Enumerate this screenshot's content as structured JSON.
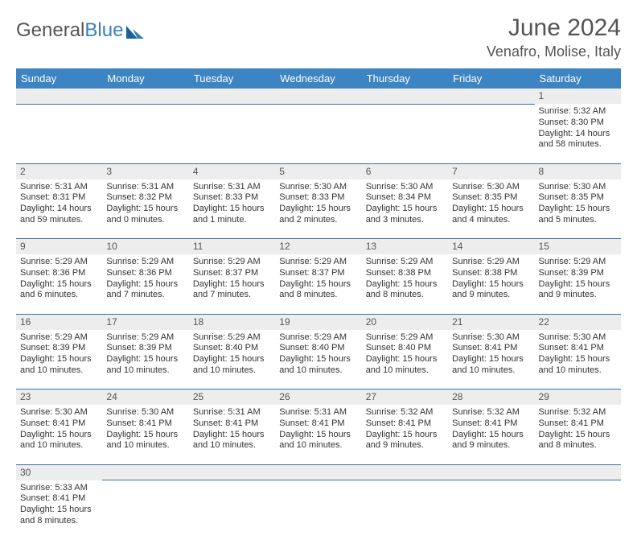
{
  "brand": {
    "part1": "General",
    "part2": "Blue"
  },
  "title": "June 2024",
  "location": "Venafro, Molise, Italy",
  "colors": {
    "header_bg": "#3d84c3",
    "header_text": "#ffffff",
    "daynum_bg": "#ededed",
    "row_divider": "#3d6fa3",
    "logo_accent": "#3b7fb8"
  },
  "weekdays": [
    "Sunday",
    "Monday",
    "Tuesday",
    "Wednesday",
    "Thursday",
    "Friday",
    "Saturday"
  ],
  "weeks": [
    [
      null,
      null,
      null,
      null,
      null,
      null,
      {
        "n": "1",
        "sr": "Sunrise: 5:32 AM",
        "ss": "Sunset: 8:30 PM",
        "d1": "Daylight: 14 hours",
        "d2": "and 58 minutes."
      }
    ],
    [
      {
        "n": "2",
        "sr": "Sunrise: 5:31 AM",
        "ss": "Sunset: 8:31 PM",
        "d1": "Daylight: 14 hours",
        "d2": "and 59 minutes."
      },
      {
        "n": "3",
        "sr": "Sunrise: 5:31 AM",
        "ss": "Sunset: 8:32 PM",
        "d1": "Daylight: 15 hours",
        "d2": "and 0 minutes."
      },
      {
        "n": "4",
        "sr": "Sunrise: 5:31 AM",
        "ss": "Sunset: 8:33 PM",
        "d1": "Daylight: 15 hours",
        "d2": "and 1 minute."
      },
      {
        "n": "5",
        "sr": "Sunrise: 5:30 AM",
        "ss": "Sunset: 8:33 PM",
        "d1": "Daylight: 15 hours",
        "d2": "and 2 minutes."
      },
      {
        "n": "6",
        "sr": "Sunrise: 5:30 AM",
        "ss": "Sunset: 8:34 PM",
        "d1": "Daylight: 15 hours",
        "d2": "and 3 minutes."
      },
      {
        "n": "7",
        "sr": "Sunrise: 5:30 AM",
        "ss": "Sunset: 8:35 PM",
        "d1": "Daylight: 15 hours",
        "d2": "and 4 minutes."
      },
      {
        "n": "8",
        "sr": "Sunrise: 5:30 AM",
        "ss": "Sunset: 8:35 PM",
        "d1": "Daylight: 15 hours",
        "d2": "and 5 minutes."
      }
    ],
    [
      {
        "n": "9",
        "sr": "Sunrise: 5:29 AM",
        "ss": "Sunset: 8:36 PM",
        "d1": "Daylight: 15 hours",
        "d2": "and 6 minutes."
      },
      {
        "n": "10",
        "sr": "Sunrise: 5:29 AM",
        "ss": "Sunset: 8:36 PM",
        "d1": "Daylight: 15 hours",
        "d2": "and 7 minutes."
      },
      {
        "n": "11",
        "sr": "Sunrise: 5:29 AM",
        "ss": "Sunset: 8:37 PM",
        "d1": "Daylight: 15 hours",
        "d2": "and 7 minutes."
      },
      {
        "n": "12",
        "sr": "Sunrise: 5:29 AM",
        "ss": "Sunset: 8:37 PM",
        "d1": "Daylight: 15 hours",
        "d2": "and 8 minutes."
      },
      {
        "n": "13",
        "sr": "Sunrise: 5:29 AM",
        "ss": "Sunset: 8:38 PM",
        "d1": "Daylight: 15 hours",
        "d2": "and 8 minutes."
      },
      {
        "n": "14",
        "sr": "Sunrise: 5:29 AM",
        "ss": "Sunset: 8:38 PM",
        "d1": "Daylight: 15 hours",
        "d2": "and 9 minutes."
      },
      {
        "n": "15",
        "sr": "Sunrise: 5:29 AM",
        "ss": "Sunset: 8:39 PM",
        "d1": "Daylight: 15 hours",
        "d2": "and 9 minutes."
      }
    ],
    [
      {
        "n": "16",
        "sr": "Sunrise: 5:29 AM",
        "ss": "Sunset: 8:39 PM",
        "d1": "Daylight: 15 hours",
        "d2": "and 10 minutes."
      },
      {
        "n": "17",
        "sr": "Sunrise: 5:29 AM",
        "ss": "Sunset: 8:39 PM",
        "d1": "Daylight: 15 hours",
        "d2": "and 10 minutes."
      },
      {
        "n": "18",
        "sr": "Sunrise: 5:29 AM",
        "ss": "Sunset: 8:40 PM",
        "d1": "Daylight: 15 hours",
        "d2": "and 10 minutes."
      },
      {
        "n": "19",
        "sr": "Sunrise: 5:29 AM",
        "ss": "Sunset: 8:40 PM",
        "d1": "Daylight: 15 hours",
        "d2": "and 10 minutes."
      },
      {
        "n": "20",
        "sr": "Sunrise: 5:29 AM",
        "ss": "Sunset: 8:40 PM",
        "d1": "Daylight: 15 hours",
        "d2": "and 10 minutes."
      },
      {
        "n": "21",
        "sr": "Sunrise: 5:30 AM",
        "ss": "Sunset: 8:41 PM",
        "d1": "Daylight: 15 hours",
        "d2": "and 10 minutes."
      },
      {
        "n": "22",
        "sr": "Sunrise: 5:30 AM",
        "ss": "Sunset: 8:41 PM",
        "d1": "Daylight: 15 hours",
        "d2": "and 10 minutes."
      }
    ],
    [
      {
        "n": "23",
        "sr": "Sunrise: 5:30 AM",
        "ss": "Sunset: 8:41 PM",
        "d1": "Daylight: 15 hours",
        "d2": "and 10 minutes."
      },
      {
        "n": "24",
        "sr": "Sunrise: 5:30 AM",
        "ss": "Sunset: 8:41 PM",
        "d1": "Daylight: 15 hours",
        "d2": "and 10 minutes."
      },
      {
        "n": "25",
        "sr": "Sunrise: 5:31 AM",
        "ss": "Sunset: 8:41 PM",
        "d1": "Daylight: 15 hours",
        "d2": "and 10 minutes."
      },
      {
        "n": "26",
        "sr": "Sunrise: 5:31 AM",
        "ss": "Sunset: 8:41 PM",
        "d1": "Daylight: 15 hours",
        "d2": "and 10 minutes."
      },
      {
        "n": "27",
        "sr": "Sunrise: 5:32 AM",
        "ss": "Sunset: 8:41 PM",
        "d1": "Daylight: 15 hours",
        "d2": "and 9 minutes."
      },
      {
        "n": "28",
        "sr": "Sunrise: 5:32 AM",
        "ss": "Sunset: 8:41 PM",
        "d1": "Daylight: 15 hours",
        "d2": "and 9 minutes."
      },
      {
        "n": "29",
        "sr": "Sunrise: 5:32 AM",
        "ss": "Sunset: 8:41 PM",
        "d1": "Daylight: 15 hours",
        "d2": "and 8 minutes."
      }
    ],
    [
      {
        "n": "30",
        "sr": "Sunrise: 5:33 AM",
        "ss": "Sunset: 8:41 PM",
        "d1": "Daylight: 15 hours",
        "d2": "and 8 minutes."
      },
      null,
      null,
      null,
      null,
      null,
      null
    ]
  ]
}
